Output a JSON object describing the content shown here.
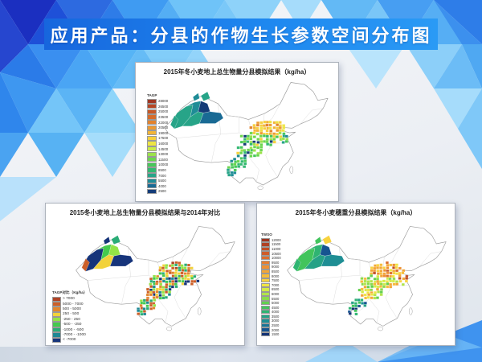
{
  "slide": {
    "title": "应用产品：分县的作物生长参数空间分布图"
  },
  "theme": {
    "banner_blue": "#1e87ef",
    "banner_blue_dark": "#1766dd",
    "banner_text": "#ffffff",
    "decor_blues": [
      "#1b2fc0",
      "#2d6ae0",
      "#3f9bf2",
      "#56b4f6",
      "#8ed5fa"
    ]
  },
  "chart_data": [
    {
      "type": "choropleth-map",
      "title": "2015年冬小麦地上总生物量分县模拟结果（kg/ha）",
      "region": "China (county level)",
      "unit": "kg/ha",
      "legend_label": "TAGP",
      "legend": [
        {
          "color": "#a03622",
          "value": "28000"
        },
        {
          "color": "#b54624",
          "value": "26500"
        },
        {
          "color": "#c75827",
          "value": "25000"
        },
        {
          "color": "#d66c2a",
          "value": "23500"
        },
        {
          "color": "#e2822e",
          "value": "22000"
        },
        {
          "color": "#ec9a33",
          "value": "20500"
        },
        {
          "color": "#f2b438",
          "value": "19000"
        },
        {
          "color": "#f6d03d",
          "value": "17500"
        },
        {
          "color": "#eee542",
          "value": "16000"
        },
        {
          "color": "#c9ec47",
          "value": "14500"
        },
        {
          "color": "#9ce24b",
          "value": "13000"
        },
        {
          "color": "#6cd64e",
          "value": "11500"
        },
        {
          "color": "#48c85a",
          "value": "10000"
        },
        {
          "color": "#33b872",
          "value": "8500"
        },
        {
          "color": "#27a488",
          "value": "7000"
        },
        {
          "color": "#1f8c96",
          "value": "5500"
        },
        {
          "color": "#196a94",
          "value": "4000"
        },
        {
          "color": "#143c78",
          "value": "2500"
        }
      ],
      "xinjiang_fills": [
        "#27a488",
        "#1f8c96",
        "#27a488",
        "#143c78",
        "#196a94",
        "#27a488",
        "#1f8c96",
        "#27a488"
      ],
      "zone_palettes": {
        "north": [
          "#f2b438",
          "#f6d03d",
          "#ec9a33",
          "#e2822e",
          "#eee542",
          "#f6d03d"
        ],
        "center": [
          "#6cd64e",
          "#48c85a",
          "#9ce24b",
          "#33b872",
          "#f6d03d",
          "#143c78",
          "#6cd64e",
          "#48c85a"
        ],
        "east": [
          "#27a488",
          "#48c85a",
          "#f6d03d",
          "#1f8c96",
          "#9ce24b"
        ],
        "southwest": [
          "#48c85a",
          "#27a488",
          "#6cd64e",
          "#1f8c96",
          "#33b872"
        ]
      }
    },
    {
      "type": "choropleth-map",
      "title": "2015冬小麦地上总生物量分县模拟结果与2014年对比",
      "region": "China (county level)",
      "unit": "Kg/ha",
      "legend_label": "TAGP对比（Kg/ha）",
      "legend": [
        {
          "color": "#b04426",
          "value": "> 7000"
        },
        {
          "color": "#cc5f28",
          "value": "5000 - 7000"
        },
        {
          "color": "#e2862e",
          "value": "500 - 5000"
        },
        {
          "color": "#f2d23a",
          "value": "250 - 500"
        },
        {
          "color": "#93e446",
          "value": "-250 - 250"
        },
        {
          "color": "#44ca4e",
          "value": "-500 - -250"
        },
        {
          "color": "#2aac76",
          "value": "-1000 - -500"
        },
        {
          "color": "#1f8894",
          "value": "-7000 - -1000"
        },
        {
          "color": "#16347a",
          "value": "< -7000"
        }
      ],
      "xinjiang_fills": [
        "#16347a",
        "#44ca4e",
        "#f2d23a",
        "#93e446",
        "#16347a",
        "#2aac76",
        "#16347a",
        "#cc5f28"
      ],
      "zone_palettes": {
        "north": [
          "#cc5f28",
          "#e2862e",
          "#b04426",
          "#f2d23a",
          "#93e446",
          "#cc5f28",
          "#2aac76",
          "#e2862e"
        ],
        "center": [
          "#cc5f28",
          "#93e446",
          "#44ca4e",
          "#f2d23a",
          "#2aac76",
          "#16347a",
          "#e2862e",
          "#1f8894"
        ],
        "east": [
          "#44ca4e",
          "#2aac76",
          "#cc5f28",
          "#f2d23a",
          "#16347a"
        ],
        "southwest": [
          "#44ca4e",
          "#2aac76",
          "#cc5f28",
          "#93e446",
          "#1f8894",
          "#e2862e"
        ]
      }
    },
    {
      "type": "choropleth-map",
      "title": "2015年冬小麦穗重分县模拟结果（kg/ha）",
      "region": "China (county level)",
      "unit": "kg/ha",
      "legend_label": "TWSO",
      "legend": [
        {
          "color": "#9e3420",
          "value": "12000"
        },
        {
          "color": "#b04124",
          "value": "11500"
        },
        {
          "color": "#c04e26",
          "value": "11000"
        },
        {
          "color": "#cf5c28",
          "value": "10500"
        },
        {
          "color": "#dc6c2a",
          "value": "10000"
        },
        {
          "color": "#e67d2e",
          "value": "9500"
        },
        {
          "color": "#ee9032",
          "value": "9000"
        },
        {
          "color": "#f3a636",
          "value": "8500"
        },
        {
          "color": "#f6bc3a",
          "value": "8000"
        },
        {
          "color": "#f8d23e",
          "value": "7500"
        },
        {
          "color": "#f0e442",
          "value": "7000"
        },
        {
          "color": "#d4ec46",
          "value": "6500"
        },
        {
          "color": "#b0e44a",
          "value": "6000"
        },
        {
          "color": "#8ada4c",
          "value": "5500"
        },
        {
          "color": "#62d04e",
          "value": "5000"
        },
        {
          "color": "#42c45c",
          "value": "4500"
        },
        {
          "color": "#2fb472",
          "value": "4000"
        },
        {
          "color": "#26a286",
          "value": "3500"
        },
        {
          "color": "#1f8e94",
          "value": "3000"
        },
        {
          "color": "#1a7496",
          "value": "2500"
        },
        {
          "color": "#165490",
          "value": "2000"
        },
        {
          "color": "#123274",
          "value": "1500"
        }
      ],
      "xinjiang_fills": [
        "#42c45c",
        "#2fb472",
        "#26a286",
        "#165490",
        "#1f8e94",
        "#f8d23e",
        "#42c45c",
        "#2fb472"
      ],
      "zone_palettes": {
        "north": [
          "#f3a636",
          "#ee9032",
          "#f6bc3a",
          "#dc6c2a",
          "#f8d23e",
          "#c04e26",
          "#f0e442"
        ],
        "center": [
          "#f0e442",
          "#d4ec46",
          "#b0e44a",
          "#f6bc3a",
          "#62d04e",
          "#f3a636",
          "#8ada4c"
        ],
        "east": [
          "#e67d2e",
          "#c04e26",
          "#f3a636",
          "#f8d23e",
          "#b0e44a"
        ],
        "southwest": [
          "#1f8e94",
          "#26a286",
          "#165490",
          "#2fb472",
          "#123274",
          "#42c45c"
        ]
      }
    }
  ]
}
